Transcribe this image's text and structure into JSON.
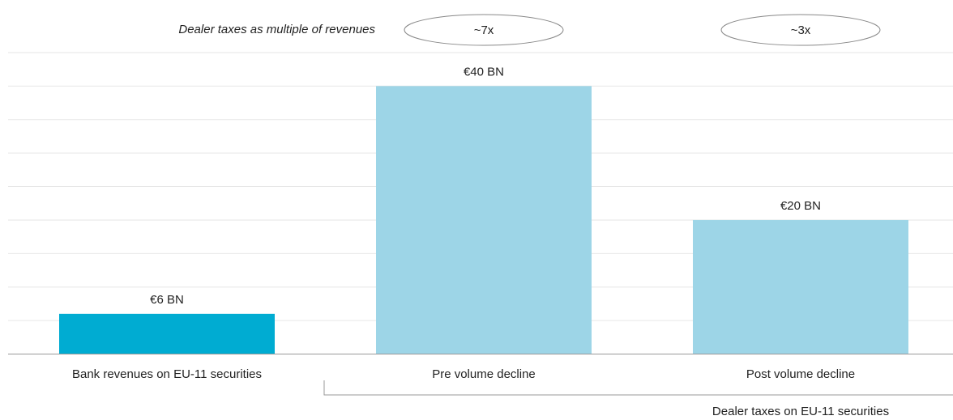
{
  "chart_data": {
    "type": "bar",
    "categories": [
      "Bank revenues on EU-11 securities",
      "Pre volume decline",
      "Post volume decline"
    ],
    "values": [
      6,
      40,
      20
    ],
    "value_labels": [
      "€6 BN",
      "€40 BN",
      "€20 BN"
    ],
    "colors": [
      "#00acd2",
      "#9dd5e7",
      "#9dd5e7"
    ],
    "ylim": [
      0,
      45
    ],
    "yticks": [
      0,
      5,
      10,
      15,
      20,
      25,
      30,
      35,
      40,
      45
    ],
    "grid": true,
    "annotation": "Dealer taxes as multiple of revenues",
    "multiples": [
      null,
      "~7x",
      "~3x"
    ],
    "group_label": "Dealer taxes on EU-11 securities"
  }
}
